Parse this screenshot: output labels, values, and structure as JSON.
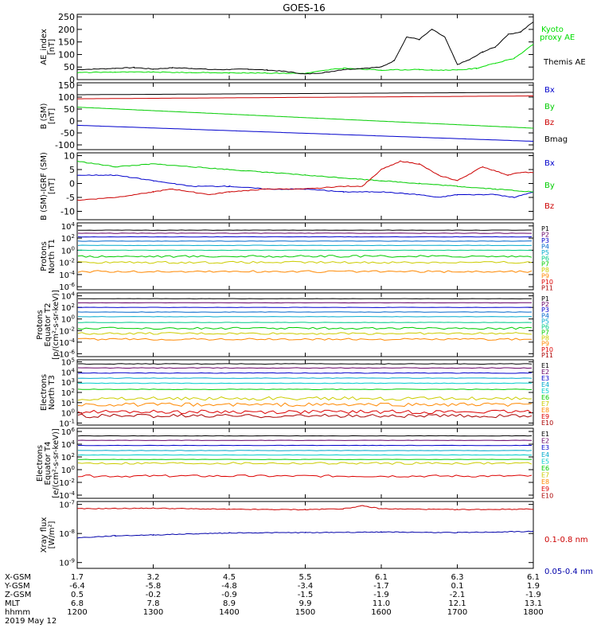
{
  "title": "GOES-16",
  "chart_data": [
    {
      "type": "line",
      "id": "ae",
      "ylabel": [
        "AE_index",
        "[nT]"
      ],
      "yticks": [
        "250",
        "200",
        "150",
        "100",
        "50",
        "0"
      ],
      "ylim": [
        0,
        260
      ],
      "series": [
        {
          "name": "Kyoto proxy AE",
          "color": "#00dd00",
          "x": [
            1200,
            1230,
            1300,
            1330,
            1400,
            1430,
            1500,
            1520,
            1530,
            1600,
            1630,
            1640,
            1700,
            1715,
            1730,
            1745,
            1800
          ],
          "y": [
            28,
            30,
            30,
            28,
            27,
            26,
            25,
            40,
            45,
            38,
            40,
            38,
            38,
            45,
            65,
            85,
            140
          ]
        },
        {
          "name": "Themis AE",
          "color": "#000000",
          "x": [
            1200,
            1215,
            1230,
            1245,
            1300,
            1315,
            1330,
            1345,
            1400,
            1415,
            1430,
            1445,
            1500,
            1515,
            1530,
            1545,
            1600,
            1610,
            1620,
            1630,
            1640,
            1650,
            1700,
            1710,
            1720,
            1730,
            1740,
            1750,
            1800
          ],
          "y": [
            40,
            42,
            45,
            48,
            42,
            47,
            45,
            40,
            40,
            42,
            38,
            32,
            22,
            28,
            40,
            45,
            50,
            75,
            170,
            160,
            200,
            170,
            60,
            80,
            110,
            130,
            180,
            190,
            230
          ]
        }
      ]
    },
    {
      "type": "line",
      "id": "bsm",
      "ylabel": [
        "B (SM)",
        "[nT]"
      ],
      "yticks": [
        "150",
        "100",
        "50",
        "0",
        "-50",
        "-100"
      ],
      "ylim": [
        -120,
        160
      ],
      "series": [
        {
          "name": "Bx",
          "color": "#0000cc",
          "x": [
            1200,
            1800
          ],
          "y": [
            -18,
            -85
          ]
        },
        {
          "name": "By",
          "color": "#00cc00",
          "x": [
            1200,
            1800
          ],
          "y": [
            58,
            -30
          ]
        },
        {
          "name": "Bz",
          "color": "#cc0000",
          "x": [
            1200,
            1800
          ],
          "y": [
            93,
            105
          ]
        },
        {
          "name": "Bmag",
          "color": "#000000",
          "x": [
            1200,
            1800
          ],
          "y": [
            110,
            120
          ]
        }
      ]
    },
    {
      "type": "line",
      "id": "bigrf",
      "ylabel": [
        "B (SM)-IGRF (SM)",
        "[nT]"
      ],
      "yticks": [
        "10",
        "5",
        "0",
        "-5",
        "-10"
      ],
      "ylim": [
        -13,
        11
      ],
      "series": [
        {
          "name": "Bx",
          "color": "#0000cc",
          "x": [
            1200,
            1230,
            1300,
            1330,
            1400,
            1430,
            1500,
            1530,
            1600,
            1630,
            1645,
            1700,
            1730,
            1745,
            1800
          ],
          "y": [
            3,
            3,
            1,
            -1,
            -1,
            -2,
            -2,
            -3,
            -3,
            -4,
            -5,
            -4,
            -4,
            -5,
            -3
          ]
        },
        {
          "name": "By",
          "color": "#00cc00",
          "x": [
            1200,
            1230,
            1300,
            1330,
            1400,
            1430,
            1500,
            1530,
            1600,
            1630,
            1700,
            1730,
            1800
          ],
          "y": [
            8,
            6,
            7,
            6,
            5,
            4,
            3,
            2,
            1,
            0,
            -1,
            -2,
            -3
          ]
        },
        {
          "name": "Bz",
          "color": "#cc0000",
          "x": [
            1200,
            1230,
            1300,
            1315,
            1345,
            1400,
            1430,
            1500,
            1530,
            1545,
            1600,
            1615,
            1630,
            1645,
            1700,
            1720,
            1740,
            1750,
            1800
          ],
          "y": [
            -6,
            -5,
            -3,
            -2,
            -4,
            -3,
            -2,
            -2,
            -1,
            -1,
            5,
            8,
            7,
            3,
            1,
            6,
            3,
            4,
            4
          ]
        }
      ]
    },
    {
      "type": "line",
      "id": "pnorth",
      "log": true,
      "ylabel": [
        "Protons",
        "North T1"
      ],
      "yticks": [
        "10^4",
        "10^2",
        "10^0",
        "10^-2",
        "10^-4",
        "10^-6"
      ],
      "ylim": [
        -6.5,
        4.5
      ],
      "series_labels": [
        "P1",
        "P2",
        "P3",
        "P4",
        "P5",
        "P6",
        "P7",
        "P8",
        "P9",
        "P10",
        "P11"
      ],
      "series_colors": [
        "#000000",
        "#660066",
        "#0000cc",
        "#0066cc",
        "#00aacc",
        "#00cc88",
        "#00cc00",
        "#cccc00",
        "#ff8800",
        "#dd0000",
        "#aa0000"
      ],
      "levels": [
        3.3,
        2.8,
        2.2,
        1.5,
        0.8,
        0.0,
        -1.0,
        -2.0,
        -3.5,
        -9,
        -9
      ]
    },
    {
      "type": "line",
      "id": "pequator",
      "log": true,
      "ylabel": [
        "Protons",
        "Equator T2",
        "[p/(cm²-s-sr-keV)]"
      ],
      "yticks": [
        "10^4",
        "10^2",
        "10^0",
        "10^-2",
        "10^-4",
        "10^-6"
      ],
      "ylim": [
        -6.5,
        4.5
      ],
      "series_labels": [
        "P1",
        "P2",
        "P3",
        "P4",
        "P5",
        "P6",
        "P7",
        "P8",
        "P9",
        "P10",
        "P11"
      ],
      "series_colors": [
        "#000000",
        "#660066",
        "#0000cc",
        "#0066cc",
        "#00aacc",
        "#00cc88",
        "#00cc00",
        "#cccc00",
        "#ff8800",
        "#dd0000",
        "#aa0000"
      ],
      "levels": [
        3.5,
        2.8,
        2.0,
        1.2,
        0.4,
        -0.6,
        -1.6,
        -2.5,
        -3.5,
        -9,
        -9
      ]
    },
    {
      "type": "line",
      "id": "enorth",
      "log": true,
      "ylabel": [
        "Electrons",
        "North T3"
      ],
      "yticks": [
        "10^5",
        "10^4",
        "10^3",
        "10^2",
        "10^1",
        "10^0",
        "10^-1"
      ],
      "ylim": [
        -1.2,
        5.2
      ],
      "series_labels": [
        "E1",
        "E2",
        "E3",
        "E4",
        "E5",
        "E6",
        "E7",
        "E8",
        "E9",
        "E10"
      ],
      "series_colors": [
        "#000000",
        "#660066",
        "#0000cc",
        "#00aacc",
        "#00cccc",
        "#00cc00",
        "#cccc00",
        "#ff8800",
        "#dd0000",
        "#aa0000"
      ],
      "levels": [
        4.8,
        4.4,
        3.9,
        3.4,
        2.9,
        2.3,
        1.4,
        0.8,
        0.1,
        -0.3
      ]
    },
    {
      "type": "line",
      "id": "eequator",
      "log": true,
      "ylabel": [
        "Electrons",
        "Equator T4",
        "[e/(cm²-s-sr-keV)]"
      ],
      "yticks": [
        "10^6",
        "10^4",
        "10^2",
        "10^0",
        "10^-2",
        "10^-4"
      ],
      "ylim": [
        -4.5,
        6.5
      ],
      "series_labels": [
        "E1",
        "E2",
        "E3",
        "E4",
        "E5",
        "E6",
        "E7",
        "E8",
        "E9",
        "E10"
      ],
      "series_colors": [
        "#000000",
        "#660066",
        "#0000cc",
        "#00aacc",
        "#00cccc",
        "#00cc00",
        "#cccc00",
        "#ff8800",
        "#dd0000",
        "#aa0000"
      ],
      "levels": [
        5.3,
        4.6,
        3.8,
        3.0,
        2.3,
        1.6,
        1.0,
        -9,
        -1.0,
        -9
      ]
    },
    {
      "type": "line",
      "id": "xray",
      "log": true,
      "ylabel": [
        "Xray flux",
        "[W/m²]"
      ],
      "yticks": [
        "10^-7",
        "10^-8",
        "10^-9"
      ],
      "ylim": [
        -9.2,
        -6.9
      ],
      "series": [
        {
          "name": "0.1-0.8 nm",
          "color": "#cc0000",
          "x": [
            1200,
            1300,
            1400,
            1500,
            1530,
            1545,
            1600,
            1700,
            1800
          ],
          "y": [
            -7.15,
            -7.13,
            -7.17,
            -7.18,
            -7.15,
            -7.05,
            -7.15,
            -7.18,
            -7.16
          ]
        },
        {
          "name": "0.05-0.4 nm",
          "color": "#0000aa",
          "x": [
            1200,
            1230,
            1300,
            1400,
            1500,
            1600,
            1700,
            1800
          ],
          "y": [
            -8.15,
            -8.08,
            -8.05,
            -7.98,
            -7.97,
            -7.95,
            -7.97,
            -7.93
          ]
        }
      ]
    }
  ],
  "ae_legend": [
    "Kyoto",
    "proxy AE",
    "Themis AE"
  ],
  "xaxis": {
    "hhmm": [
      "1200",
      "1300",
      "1400",
      "1500",
      "1600",
      "1700",
      "1800"
    ],
    "rows": [
      {
        "label": "X-GSM",
        "values": [
          "1.7",
          "3.2",
          "4.5",
          "5.5",
          "6.1",
          "6.3",
          "6.1"
        ]
      },
      {
        "label": "Y-GSM",
        "values": [
          "-6.4",
          "-5.8",
          "-4.8",
          "-3.4",
          "-1.7",
          "0.1",
          "1.9"
        ]
      },
      {
        "label": "Z-GSM",
        "values": [
          "0.5",
          "-0.2",
          "-0.9",
          "-1.5",
          "-1.9",
          "-2.1",
          "-1.9"
        ]
      },
      {
        "label": "MLT",
        "values": [
          "6.8",
          "7.8",
          "8.9",
          "9.9",
          "11.0",
          "12.1",
          "13.1"
        ]
      },
      {
        "label": "hhmm",
        "values": [
          "1200",
          "1300",
          "1400",
          "1500",
          "1600",
          "1700",
          "1800"
        ]
      }
    ],
    "date": "2019 May 12"
  },
  "xray_legend": [
    "0.1-0.8 nm",
    "0.05-0.4 nm"
  ]
}
